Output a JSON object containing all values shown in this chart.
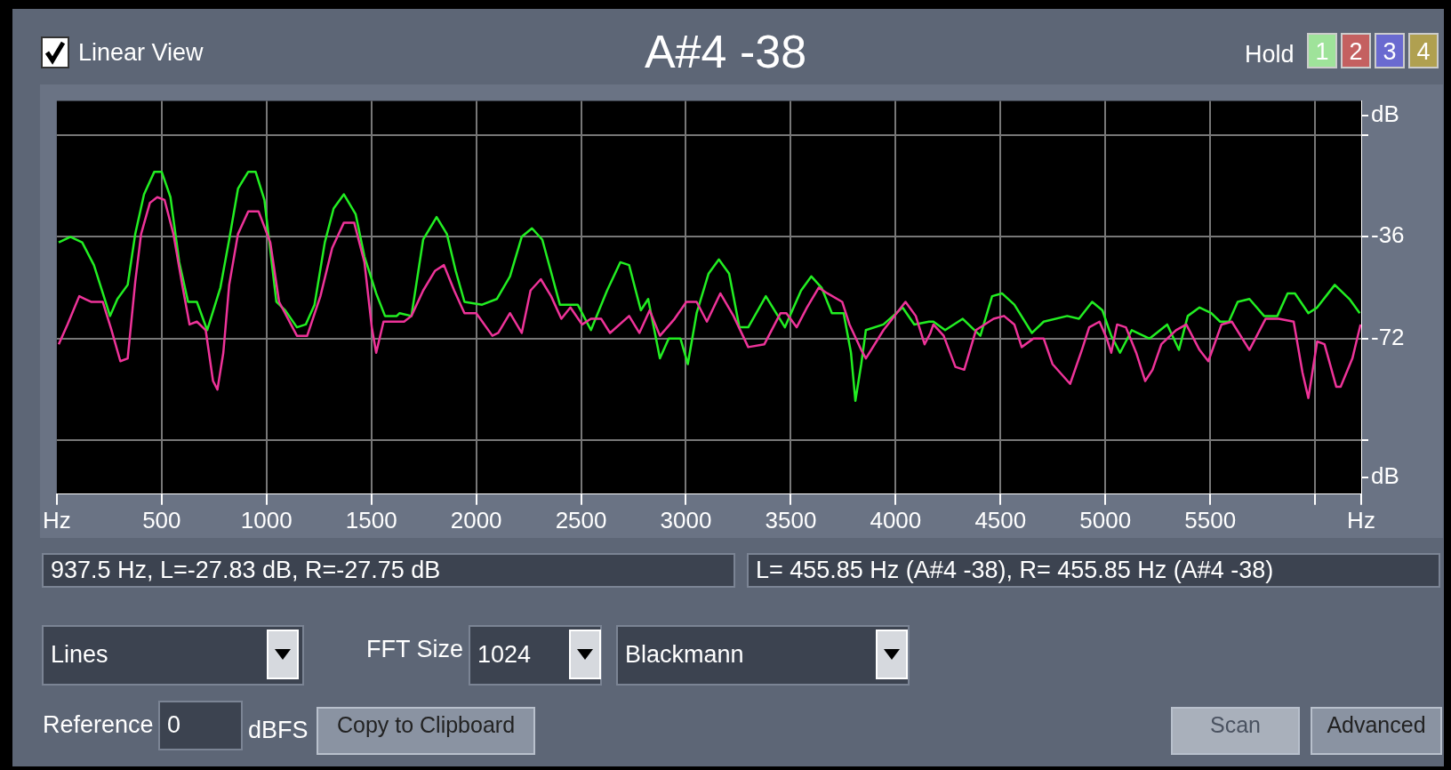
{
  "chart_data": {
    "type": "line",
    "title": "A#4 -38",
    "xlim": [
      0,
      6220
    ],
    "ylim": [
      -127,
      12
    ],
    "xticks": [
      {
        "value": 0,
        "label": "Hz"
      },
      500,
      1000,
      1500,
      2000,
      2500,
      3000,
      3500,
      4000,
      4500,
      5000,
      5500,
      {
        "value": 6000,
        "label": null
      },
      {
        "value": 6220,
        "label": "Hz"
      }
    ],
    "yticks": [
      {
        "value": 7,
        "label": "dB"
      },
      {
        "value": 0,
        "label": null
      },
      -36,
      -72,
      {
        "value": -108,
        "label": null
      },
      {
        "value": -121,
        "label": "dB"
      }
    ],
    "grid": true,
    "legend": false,
    "marker": "none",
    "line_style": "solid",
    "series": [
      {
        "color": "#ee3399",
        "x": [
          9,
          51,
          107,
          135,
          163,
          219,
          261,
          303,
          338,
          374,
          402,
          444,
          479,
          514,
          556,
          598,
          633,
          668,
          710,
          745,
          766,
          794,
          822,
          864,
          913,
          962,
          1018,
          1060,
          1145,
          1194,
          1257,
          1313,
          1369,
          1418,
          1467,
          1502,
          1523,
          1558,
          1656,
          1691,
          1747,
          1804,
          1846,
          1895,
          1944,
          2000,
          2077,
          2105,
          2161,
          2217,
          2259,
          2308,
          2357,
          2406,
          2449,
          2505,
          2547,
          2596,
          2638,
          2729,
          2778,
          2827,
          2876,
          2946,
          3002,
          3051,
          3100,
          3164,
          3227,
          3297,
          3374,
          3451,
          3479,
          3528,
          3577,
          3633,
          3675,
          3745,
          3780,
          3836,
          3858,
          3942,
          4047,
          4096,
          4138,
          4166,
          4180,
          4229,
          4285,
          4327,
          4383,
          4467,
          4517,
          4566,
          4601,
          4657,
          4706,
          4748,
          4832,
          4888,
          4923,
          4972,
          5007,
          5028,
          5056,
          5098,
          5147,
          5190,
          5225,
          5267,
          5337,
          5386,
          5449,
          5491,
          5554,
          5603,
          5687,
          5764,
          5827,
          5898,
          5940,
          5968,
          6010,
          6045,
          6101,
          6122,
          6178,
          6217
        ],
        "values": [
          -74,
          -67,
          -57,
          -58,
          -59,
          -59,
          -69,
          -80,
          -79,
          -52,
          -35,
          -24,
          -22,
          -23,
          -35,
          -53,
          -67,
          -66,
          -69,
          -87,
          -90,
          -77,
          -53,
          -35,
          -27,
          -27,
          -38,
          -59,
          -71,
          -71,
          -57,
          -40,
          -31,
          -31,
          -45,
          -68,
          -77,
          -66,
          -66,
          -64,
          -55,
          -48,
          -46,
          -55,
          -63,
          -63,
          -71,
          -70,
          -63,
          -70,
          -55,
          -51,
          -57,
          -65,
          -61,
          -67,
          -65,
          -65,
          -70,
          -64,
          -70,
          -62,
          -71,
          -65,
          -59,
          -59,
          -66,
          -56,
          -64,
          -75,
          -74,
          -63,
          -63,
          -68,
          -61,
          -54,
          -56,
          -59,
          -67,
          -76,
          -79,
          -69,
          -59,
          -64,
          -74,
          -70,
          -67,
          -71,
          -82,
          -83,
          -69,
          -65,
          -64,
          -67,
          -75,
          -72,
          -72,
          -81,
          -88,
          -76,
          -68,
          -66,
          -72,
          -77,
          -67,
          -68,
          -77,
          -87,
          -83,
          -74,
          -69,
          -67,
          -76,
          -80,
          -67,
          -66,
          -76,
          -65,
          -65,
          -66,
          -84,
          -93,
          -73,
          -74,
          -89,
          -89,
          -79,
          -67
        ]
      },
      {
        "color": "#22ee22",
        "x": [
          9,
          65,
          121,
          177,
          254,
          289,
          338,
          374,
          416,
          465,
          500,
          542,
          584,
          626,
          668,
          717,
          780,
          822,
          864,
          913,
          948,
          990,
          1047,
          1089,
          1145,
          1187,
          1229,
          1278,
          1320,
          1369,
          1425,
          1467,
          1523,
          1565,
          1621,
          1635,
          1691,
          1747,
          1811,
          1860,
          1902,
          1944,
          2028,
          2098,
          2161,
          2217,
          2266,
          2315,
          2399,
          2484,
          2547,
          2624,
          2687,
          2729,
          2785,
          2820,
          2876,
          2918,
          2974,
          3009,
          3051,
          3108,
          3157,
          3206,
          3255,
          3297,
          3381,
          3472,
          3549,
          3598,
          3647,
          3696,
          3752,
          3787,
          3808,
          3836,
          3858,
          3942,
          4033,
          4089,
          4159,
          4180,
          4236,
          4320,
          4404,
          4460,
          4507,
          4566,
          4650,
          4706,
          4818,
          4874,
          4937,
          4986,
          5028,
          5070,
          5126,
          5211,
          5295,
          5351,
          5393,
          5449,
          5505,
          5547,
          5589,
          5631,
          5687,
          5757,
          5820,
          5869,
          5904,
          5968,
          6010,
          6094,
          6164,
          6213
        ],
        "values": [
          -38,
          -36,
          -38,
          -46,
          -64,
          -58,
          -53,
          -35,
          -21,
          -13,
          -13,
          -22,
          -45,
          -59,
          -59,
          -69,
          -54,
          -37,
          -19,
          -13,
          -13,
          -23,
          -59,
          -62,
          -68,
          -67,
          -60,
          -38,
          -26,
          -21,
          -28,
          -43,
          -56,
          -64,
          -64,
          -63,
          -64,
          -37,
          -29,
          -35,
          -48,
          -59,
          -60,
          -58,
          -50,
          -36,
          -33,
          -37,
          -60,
          -60,
          -69,
          -55,
          -45,
          -46,
          -62,
          -58,
          -79,
          -72,
          -72,
          -81,
          -63,
          -49,
          -44,
          -49,
          -68,
          -68,
          -57,
          -68,
          -55,
          -50,
          -54,
          -63,
          -63,
          -77,
          -94,
          -81,
          -69,
          -67,
          -61,
          -67,
          -66,
          -66,
          -69,
          -65,
          -71,
          -57,
          -56,
          -60,
          -70,
          -66,
          -64,
          -65,
          -59,
          -62,
          -71,
          -77,
          -69,
          -72,
          -67,
          -76,
          -64,
          -61,
          -63,
          -66,
          -66,
          -59,
          -58,
          -64,
          -64,
          -56,
          -56,
          -63,
          -61,
          -53,
          -58,
          -63
        ]
      }
    ],
    "annotations": [
      "Linear View",
      "Hold",
      "1",
      "2",
      "3",
      "4",
      "937.5 Hz, L=-27.83 dB, R=-27.75 dB",
      "L= 455.85 Hz (A#4 -38), R= 455.85 Hz (A#4 -38)",
      "Lines",
      "FFT Size",
      "1024",
      "Blackmann",
      "Reference",
      "0",
      "dBFS",
      "Copy to Clipboard",
      "Scan",
      "Advanced"
    ]
  }
}
